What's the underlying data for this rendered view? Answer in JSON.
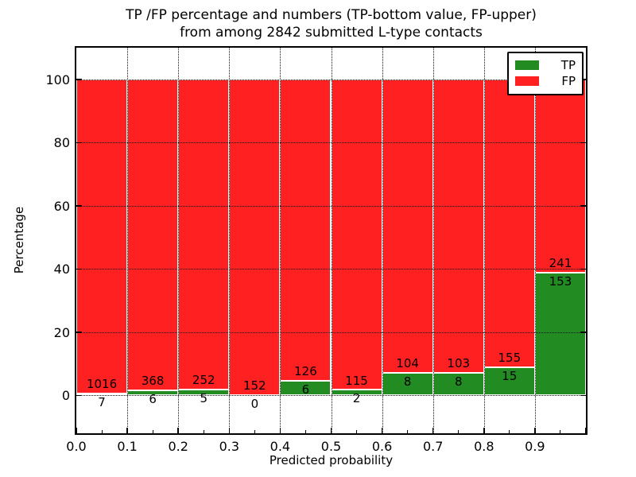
{
  "figure": {
    "title_line1": "TP /FP percentage and numbers (TP-bottom value, FP-upper)",
    "title_line2": "from among 2842 submitted L-type contacts",
    "xlabel": "Predicted probability",
    "ylabel": "Percentage"
  },
  "legend": {
    "items": [
      {
        "label": "TP",
        "color": "#228B22"
      },
      {
        "label": "FP",
        "color": "#FF2121"
      }
    ]
  },
  "chart_data": {
    "type": "bar",
    "stacked": true,
    "normalized": "percent",
    "title": "TP /FP percentage and numbers (TP-bottom value, FP-upper) from among 2842 submitted L-type contacts",
    "xlabel": "Predicted probability",
    "ylabel": "Percentage",
    "total_contacts": 2842,
    "bin_width": 0.1,
    "categories": [
      "0.0",
      "0.1",
      "0.2",
      "0.3",
      "0.4",
      "0.5",
      "0.6",
      "0.7",
      "0.8",
      "0.9"
    ],
    "series": [
      {
        "name": "TP",
        "color": "#228B22",
        "counts": [
          7,
          6,
          5,
          0,
          6,
          2,
          8,
          8,
          15,
          153
        ]
      },
      {
        "name": "FP",
        "color": "#FF2121",
        "counts": [
          1016,
          368,
          252,
          152,
          126,
          115,
          104,
          103,
          155,
          241
        ]
      }
    ],
    "tp_percent_of_bin": [
      0.68,
      1.6,
      1.95,
      0.0,
      4.55,
      1.71,
      7.14,
      7.21,
      8.82,
      38.83
    ],
    "x_ticks": [
      "0.0",
      "0.1",
      "0.2",
      "0.3",
      "0.4",
      "0.5",
      "0.6",
      "0.7",
      "0.8",
      "0.9"
    ],
    "x_minor_tick_step": 0.05,
    "y_ticks": [
      0,
      20,
      40,
      60,
      80,
      100
    ],
    "xlim": [
      0.0,
      1.0
    ],
    "ylim": [
      -12,
      110
    ],
    "grid": "dotted",
    "legend_position": "upper right"
  }
}
